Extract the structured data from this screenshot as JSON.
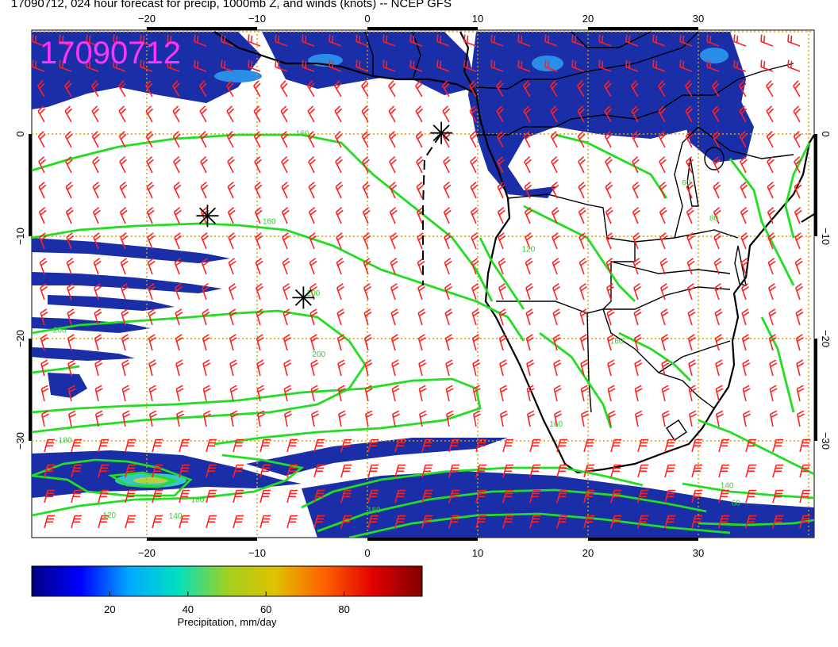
{
  "title": "17090712, 024 hour forecast for precip, 1000mb Z, and winds (knots) -- NCEP GFS",
  "stamp": "17090712",
  "axes": {
    "lon_ticks": [
      {
        "value": -20,
        "label": "−20"
      },
      {
        "value": -10,
        "label": "−10"
      },
      {
        "value": 0,
        "label": "0"
      },
      {
        "value": 10,
        "label": "10"
      },
      {
        "value": 20,
        "label": "20"
      },
      {
        "value": 30,
        "label": "30"
      }
    ],
    "lat_ticks": [
      {
        "value": 0,
        "label": "0"
      },
      {
        "value": -10,
        "label": "−10"
      },
      {
        "value": -20,
        "label": "−20"
      },
      {
        "value": -30,
        "label": "−30"
      }
    ],
    "lon_range": [
      -30,
      41
    ],
    "lat_range": [
      -38.5,
      10
    ]
  },
  "contour_labels": [
    {
      "text": "160",
      "lon": -6.5,
      "lat": -0.2
    },
    {
      "text": "160",
      "lon": -9.5,
      "lat": -8.8
    },
    {
      "text": "200",
      "lon": -5.5,
      "lat": -15.8
    },
    {
      "text": "200",
      "lon": -28.5,
      "lat": -19.4
    },
    {
      "text": "200",
      "lon": -5,
      "lat": -21.8
    },
    {
      "text": "180",
      "lon": -28,
      "lat": -30.2
    },
    {
      "text": "180",
      "lon": -16,
      "lat": -36
    },
    {
      "text": "120",
      "lon": -24,
      "lat": -37.5
    },
    {
      "text": "140",
      "lon": -18,
      "lat": -37.6
    },
    {
      "text": "180",
      "lon": 0,
      "lat": -37
    },
    {
      "text": "160",
      "lon": 16.5,
      "lat": -28.6
    },
    {
      "text": "140",
      "lon": 32,
      "lat": -34.6
    },
    {
      "text": "60",
      "lon": 33,
      "lat": -36.3
    },
    {
      "text": "120",
      "lon": 14,
      "lat": -11.5
    },
    {
      "text": "80",
      "lon": 31,
      "lat": -8.5
    },
    {
      "text": "60",
      "lon": 28.5,
      "lat": -5
    },
    {
      "text": "160",
      "lon": 22,
      "lat": -20.5
    }
  ],
  "colorbar": {
    "label": "Precipitation, mm/day",
    "ticks": [
      {
        "value": 20,
        "label": "20"
      },
      {
        "value": 40,
        "label": "40"
      },
      {
        "value": 60,
        "label": "60"
      },
      {
        "value": 80,
        "label": "80"
      }
    ],
    "range": [
      0,
      100
    ],
    "stops": [
      "#000080",
      "#0000ff",
      "#00aaff",
      "#00e0c0",
      "#a0d020",
      "#e0c000",
      "#ff6000",
      "#e00000",
      "#800000"
    ]
  },
  "markers": [
    {
      "lon": -14.5,
      "lat": -8
    },
    {
      "lon": -5.8,
      "lat": -16
    },
    {
      "lon": 6.7,
      "lat": 0.1
    }
  ],
  "colors": {
    "precip_blue": "#1a2ea8",
    "contour_green": "#22dd22",
    "barb_red": "#ff2020",
    "grid_orange": "#d4a000",
    "stamp_magenta": "#ff33ff"
  }
}
